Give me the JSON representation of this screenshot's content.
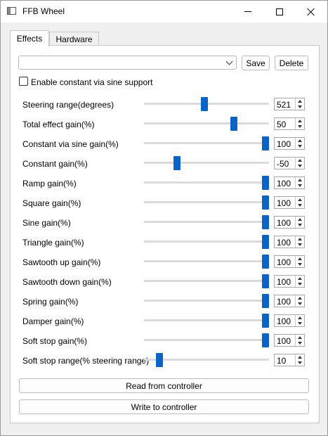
{
  "window": {
    "title": "FFB Wheel"
  },
  "tabs": [
    {
      "label": "Effects",
      "active": true
    },
    {
      "label": "Hardware",
      "active": false
    }
  ],
  "profile": {
    "value": "",
    "save_label": "Save",
    "delete_label": "Delete"
  },
  "sine_support": {
    "label": "Enable constant via sine support",
    "checked": false
  },
  "settings": [
    {
      "label": "Steering range(degrees)",
      "value": "521",
      "fraction": 0.48
    },
    {
      "label": "Total effect gain(%)",
      "value": "50",
      "fraction": 0.73
    },
    {
      "label": "Constant via sine gain(%)",
      "value": "100",
      "fraction": 1.0
    },
    {
      "label": "Constant gain(%)",
      "value": "-50",
      "fraction": 0.25
    },
    {
      "label": "Ramp gain(%)",
      "value": "100",
      "fraction": 1.0
    },
    {
      "label": "Square gain(%)",
      "value": "100",
      "fraction": 1.0
    },
    {
      "label": "Sine gain(%)",
      "value": "100",
      "fraction": 1.0
    },
    {
      "label": "Triangle gain(%)",
      "value": "100",
      "fraction": 1.0
    },
    {
      "label": "Sawtooth up gain(%)",
      "value": "100",
      "fraction": 1.0
    },
    {
      "label": "Sawtooth down gain(%)",
      "value": "100",
      "fraction": 1.0
    },
    {
      "label": "Spring gain(%)",
      "value": "100",
      "fraction": 1.0
    },
    {
      "label": "Damper gain(%)",
      "value": "100",
      "fraction": 1.0
    },
    {
      "label": "Soft stop gain(%)",
      "value": "100",
      "fraction": 1.0
    },
    {
      "label": "Soft stop range(% steering range)",
      "value": "10",
      "fraction": 0.1
    }
  ],
  "actions": {
    "read_label": "Read from controller",
    "write_label": "Write to controller"
  },
  "colors": {
    "accent": "#0a64c8"
  }
}
